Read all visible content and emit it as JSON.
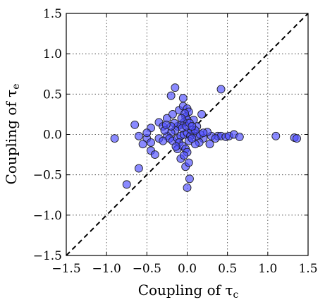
{
  "chart_data": {
    "type": "scatter",
    "xlabel_base": "Coupling of τ",
    "xlabel_sub": "c",
    "ylabel_base": "Coupling of τ",
    "ylabel_sub": "e",
    "xlim": [
      -1.5,
      1.5
    ],
    "ylim": [
      -1.5,
      1.5
    ],
    "xticks": [
      -1.5,
      -1.0,
      -0.5,
      0.0,
      0.5,
      1.0,
      1.5
    ],
    "yticks": [
      -1.5,
      -1.0,
      -0.5,
      0.0,
      0.5,
      1.0,
      1.5
    ],
    "xtick_labels": [
      "−1.5",
      "−1.0",
      "−0.5",
      "0.0",
      "0.5",
      "1.0",
      "1.5"
    ],
    "ytick_labels": [
      "−1.5",
      "−1.0",
      "−0.5",
      "0.0",
      "0.5",
      "1.0",
      "1.5"
    ],
    "grid": true,
    "reference_line": "y = x (dashed)",
    "point_color": "#4c4cff",
    "points": [
      [
        -0.15,
        0.58
      ],
      [
        0.42,
        0.56
      ],
      [
        -0.2,
        0.48
      ],
      [
        -0.05,
        0.45
      ],
      [
        0.18,
        0.25
      ],
      [
        -0.9,
        -0.05
      ],
      [
        -0.65,
        0.12
      ],
      [
        -0.6,
        -0.02
      ],
      [
        -0.5,
        -0.05
      ],
      [
        -0.45,
        -0.1
      ],
      [
        -0.55,
        -0.12
      ],
      [
        -0.45,
        0.08
      ],
      [
        -0.5,
        0.02
      ],
      [
        -0.35,
        0.15
      ],
      [
        -0.3,
        0.1
      ],
      [
        -0.6,
        -0.42
      ],
      [
        -0.75,
        -0.62
      ],
      [
        -0.45,
        -0.2
      ],
      [
        -0.4,
        -0.25
      ],
      [
        -0.35,
        -0.05
      ],
      [
        0.38,
        -0.02
      ],
      [
        0.42,
        -0.02
      ],
      [
        0.48,
        -0.03
      ],
      [
        0.52,
        -0.02
      ],
      [
        0.58,
        0.0
      ],
      [
        0.65,
        -0.03
      ],
      [
        1.1,
        -0.02
      ],
      [
        1.33,
        -0.04
      ],
      [
        1.36,
        -0.05
      ],
      [
        0.3,
        -0.02
      ],
      [
        0.25,
        0.03
      ],
      [
        0.2,
        -0.05
      ],
      [
        0.35,
        -0.05
      ],
      [
        0.28,
        -0.12
      ],
      [
        0.15,
        -0.1
      ],
      [
        0.1,
        -0.12
      ],
      [
        0.12,
        0.1
      ],
      [
        0.08,
        0.18
      ],
      [
        0.03,
        -0.55
      ],
      [
        0.0,
        -0.66
      ],
      [
        -0.02,
        -0.4
      ],
      [
        0.02,
        -0.35
      ],
      [
        -0.08,
        -0.3
      ],
      [
        -0.12,
        -0.18
      ],
      [
        -0.25,
        0.2
      ],
      [
        -0.18,
        0.25
      ],
      [
        -0.1,
        0.3
      ],
      [
        -0.05,
        0.35
      ],
      [
        0.0,
        0.32
      ],
      [
        0.02,
        0.28
      ],
      [
        -0.02,
        0.22
      ],
      [
        0.0,
        0.18
      ],
      [
        -0.04,
        0.15
      ],
      [
        -0.08,
        0.12
      ],
      [
        -0.12,
        0.1
      ],
      [
        -0.15,
        0.05
      ],
      [
        -0.2,
        0.02
      ],
      [
        -0.25,
        -0.02
      ],
      [
        -0.28,
        0.05
      ],
      [
        -0.22,
        -0.05
      ],
      [
        -0.18,
        -0.08
      ],
      [
        -0.12,
        -0.05
      ],
      [
        -0.08,
        -0.02
      ],
      [
        -0.04,
        0.0
      ],
      [
        0.0,
        0.02
      ],
      [
        0.04,
        -0.02
      ],
      [
        0.08,
        0.02
      ],
      [
        0.12,
        -0.02
      ],
      [
        0.16,
        0.0
      ],
      [
        0.2,
        0.02
      ],
      [
        -0.1,
        -0.1
      ],
      [
        -0.06,
        -0.14
      ],
      [
        -0.02,
        -0.18
      ],
      [
        0.0,
        -0.22
      ],
      [
        -0.04,
        -0.26
      ],
      [
        0.02,
        -0.08
      ],
      [
        0.05,
        0.06
      ],
      [
        -0.06,
        0.08
      ],
      [
        -0.16,
        0.14
      ],
      [
        -0.2,
        0.1
      ],
      [
        -0.3,
        -0.08
      ],
      [
        -0.26,
        0.12
      ],
      [
        0.06,
        -0.05
      ],
      [
        0.1,
        0.05
      ],
      [
        -0.14,
        -0.15
      ],
      [
        -0.01,
        0.1
      ],
      [
        0.03,
        0.14
      ],
      [
        -0.03,
        0.26
      ],
      [
        -0.07,
        0.2
      ],
      [
        0.06,
        0.1
      ]
    ]
  }
}
